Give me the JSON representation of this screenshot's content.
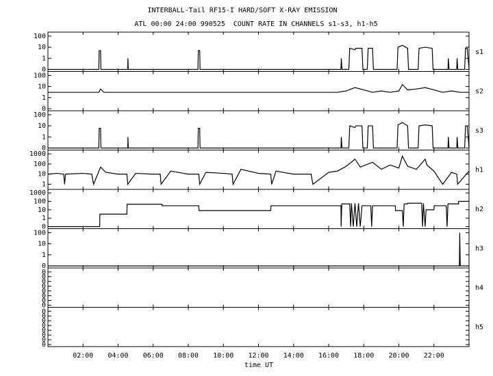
{
  "chart_data": {
    "type": "line",
    "title": "INTERBALL-Tail RF15-I HARD/SOFT X-RAY EMISSION",
    "subtitle": "ATL 00:00 24:00 990525  COUNT RATE IN CHANNELS s1-s3, h1-h5",
    "xlabel": "time UT",
    "xlim": [
      0,
      24
    ],
    "xticks": [
      {
        "value": 2,
        "label": "02:00"
      },
      {
        "value": 4,
        "label": "04:00"
      },
      {
        "value": 6,
        "label": "06:00"
      },
      {
        "value": 8,
        "label": "08:00"
      },
      {
        "value": 10,
        "label": "10:00"
      },
      {
        "value": 12,
        "label": "12:00"
      },
      {
        "value": 14,
        "label": "14:00"
      },
      {
        "value": 16,
        "label": "16:00"
      },
      {
        "value": 18,
        "label": "18:00"
      },
      {
        "value": 20,
        "label": "20:00"
      },
      {
        "value": 22,
        "label": "22:00"
      }
    ],
    "color": "#000000",
    "panels": [
      {
        "name": "s1",
        "yscale": "log",
        "ylim": [
          0,
          150
        ],
        "yticks": [
          0,
          1,
          10,
          100
        ],
        "x": [
          0,
          2.9,
          2.92,
          3.0,
          3.02,
          4.55,
          4.56,
          4.58,
          8.55,
          8.57,
          8.65,
          8.67,
          16.7,
          16.72,
          16.76,
          17.15,
          17.2,
          17.5,
          17.55,
          17.9,
          17.95,
          18.2,
          18.25,
          18.5,
          18.55,
          19.9,
          19.95,
          20.2,
          20.5,
          20.55,
          21.1,
          21.15,
          21.5,
          21.9,
          21.95,
          22.8,
          22.82,
          22.86,
          23.3,
          23.32,
          23.36,
          23.75,
          23.8,
          23.9,
          24
        ],
        "values": [
          0,
          0,
          5,
          5,
          0,
          0,
          1,
          0,
          0,
          5,
          5,
          0,
          0,
          1,
          0,
          0,
          8,
          6,
          8,
          8,
          0,
          0,
          8,
          8,
          0,
          0,
          10,
          15,
          8,
          0,
          0,
          8,
          10,
          8,
          0,
          0,
          1,
          0,
          0,
          1,
          0,
          0,
          8,
          8,
          0
        ]
      },
      {
        "name": "s2",
        "yscale": "log",
        "ylim": [
          0,
          150
        ],
        "yticks": [
          0,
          1,
          10,
          100
        ],
        "x": [
          0,
          1,
          2,
          2.9,
          3,
          3.2,
          4,
          5,
          6,
          7,
          8,
          9,
          10,
          11,
          12,
          13,
          14,
          15,
          16,
          16.5,
          17,
          17.5,
          18,
          18.5,
          19,
          19.5,
          20,
          20.2,
          20.5,
          21,
          21.5,
          22,
          22.5,
          23,
          23.5,
          24
        ],
        "values": [
          3,
          3,
          3,
          3,
          6,
          3,
          3,
          3,
          3,
          3,
          3,
          3,
          3,
          3,
          3,
          3,
          3,
          3,
          3,
          3,
          4,
          8,
          5,
          3,
          4,
          3,
          4,
          15,
          5,
          6,
          8,
          5,
          3,
          4,
          3,
          3
        ]
      },
      {
        "name": "s3",
        "yscale": "log",
        "ylim": [
          0,
          150
        ],
        "yticks": [
          0,
          1,
          10,
          100
        ],
        "x": [
          0,
          2.9,
          2.92,
          3.0,
          3.02,
          4.55,
          4.56,
          4.58,
          8.55,
          8.57,
          8.65,
          8.67,
          16.7,
          16.72,
          16.76,
          17.15,
          17.2,
          17.5,
          17.55,
          17.9,
          17.95,
          18.2,
          18.25,
          18.5,
          18.55,
          19.9,
          19.95,
          20.2,
          20.5,
          20.55,
          21.1,
          21.15,
          21.5,
          21.9,
          21.95,
          22.8,
          22.82,
          22.86,
          23.3,
          23.32,
          23.36,
          23.75,
          23.8,
          23.9,
          24
        ],
        "values": [
          0,
          0,
          6,
          6,
          0,
          0,
          1,
          0,
          0,
          6,
          6,
          0,
          0,
          1,
          0,
          0,
          10,
          7,
          10,
          10,
          0,
          0,
          10,
          10,
          0,
          0,
          12,
          20,
          10,
          0,
          0,
          10,
          12,
          10,
          0,
          0,
          1,
          0,
          0,
          1,
          0,
          0,
          10,
          10,
          0
        ]
      },
      {
        "name": "h1",
        "yscale": "log",
        "ylim": [
          0.5,
          1500
        ],
        "yticks": [
          1,
          10,
          100,
          1000
        ],
        "x": [
          0,
          0.5,
          0.9,
          0.95,
          1,
          2,
          2.5,
          2.6,
          3,
          3.3,
          4,
          4.5,
          4.55,
          5,
          6,
          6.4,
          6.45,
          7,
          8,
          8.6,
          8.65,
          9,
          10,
          10.5,
          10.55,
          11,
          12,
          12.7,
          12.75,
          13,
          14,
          15,
          15.1,
          16,
          16.5,
          17,
          17.5,
          17.8,
          18.5,
          19,
          19.5,
          20,
          20.2,
          20.5,
          21,
          21.5,
          21.6,
          22,
          22.5,
          23,
          23.3,
          23.35,
          24
        ],
        "values": [
          10,
          12,
          10,
          1,
          10,
          12,
          10,
          1,
          50,
          15,
          10,
          10,
          1,
          12,
          10,
          10,
          1,
          20,
          10,
          10,
          1,
          15,
          12,
          10,
          1,
          30,
          12,
          10,
          1,
          20,
          10,
          10,
          1,
          15,
          20,
          60,
          300,
          50,
          150,
          30,
          80,
          40,
          600,
          60,
          30,
          300,
          80,
          20,
          1,
          15,
          10,
          1,
          20
        ]
      },
      {
        "name": "h2",
        "yscale": "log",
        "ylim": [
          0,
          1500
        ],
        "yticks": [
          0,
          1,
          10,
          100,
          1000
        ],
        "x": [
          0,
          2.95,
          2.96,
          4.5,
          4.51,
          6.5,
          6.51,
          8.6,
          8.61,
          12.7,
          12.71,
          16.7,
          16.71,
          16.75,
          17.2,
          17.25,
          17.3,
          17.4,
          17.5,
          17.6,
          17.7,
          17.8,
          17.9,
          18.4,
          18.45,
          18.5,
          19.8,
          19.81,
          20.2,
          20.25,
          20.3,
          20.5,
          20.51,
          21.3,
          21.35,
          21.4,
          21.5,
          21.55,
          22,
          22.01,
          22.7,
          22.75,
          22.8,
          23.4,
          23.41,
          24
        ],
        "values": [
          0,
          0,
          3,
          3,
          45,
          45,
          30,
          30,
          8,
          8,
          30,
          30,
          0,
          50,
          50,
          0,
          60,
          0,
          60,
          0,
          60,
          0,
          30,
          30,
          0,
          30,
          30,
          8,
          8,
          0,
          50,
          50,
          60,
          60,
          0,
          60,
          0,
          10,
          10,
          30,
          30,
          0,
          50,
          50,
          100,
          100
        ]
      },
      {
        "name": "h3",
        "yscale": "log",
        "ylim": [
          0,
          150
        ],
        "yticks": [
          0,
          1,
          10,
          100
        ],
        "x": [
          0,
          23.45,
          23.47,
          23.5,
          24
        ],
        "values": [
          0,
          0,
          100,
          0,
          0
        ]
      },
      {
        "name": "h4",
        "yscale": "linear",
        "ylim": [
          0,
          0.37
        ],
        "yticks": [
          {
            "value": 0,
            "label": "0"
          },
          {
            "value": 0.05,
            "label": "0"
          },
          {
            "value": 0.1,
            "label": "0"
          },
          {
            "value": 0.15,
            "label": "0"
          },
          {
            "value": 0.2,
            "label": "0"
          },
          {
            "value": 0.25,
            "label": "0"
          },
          {
            "value": 0.3,
            "label": "0"
          },
          {
            "value": 0.35,
            "label": "0"
          }
        ]
      },
      {
        "name": "h5",
        "yscale": "linear",
        "ylim": [
          0,
          0.37
        ],
        "yticks": [
          {
            "value": 0,
            "label": "0"
          },
          {
            "value": 0.05,
            "label": "0"
          },
          {
            "value": 0.1,
            "label": "0"
          },
          {
            "value": 0.15,
            "label": "0"
          },
          {
            "value": 0.2,
            "label": "0"
          },
          {
            "value": 0.25,
            "label": "0"
          },
          {
            "value": 0.3,
            "label": "0"
          },
          {
            "value": 0.35,
            "label": "0"
          }
        ]
      }
    ]
  }
}
